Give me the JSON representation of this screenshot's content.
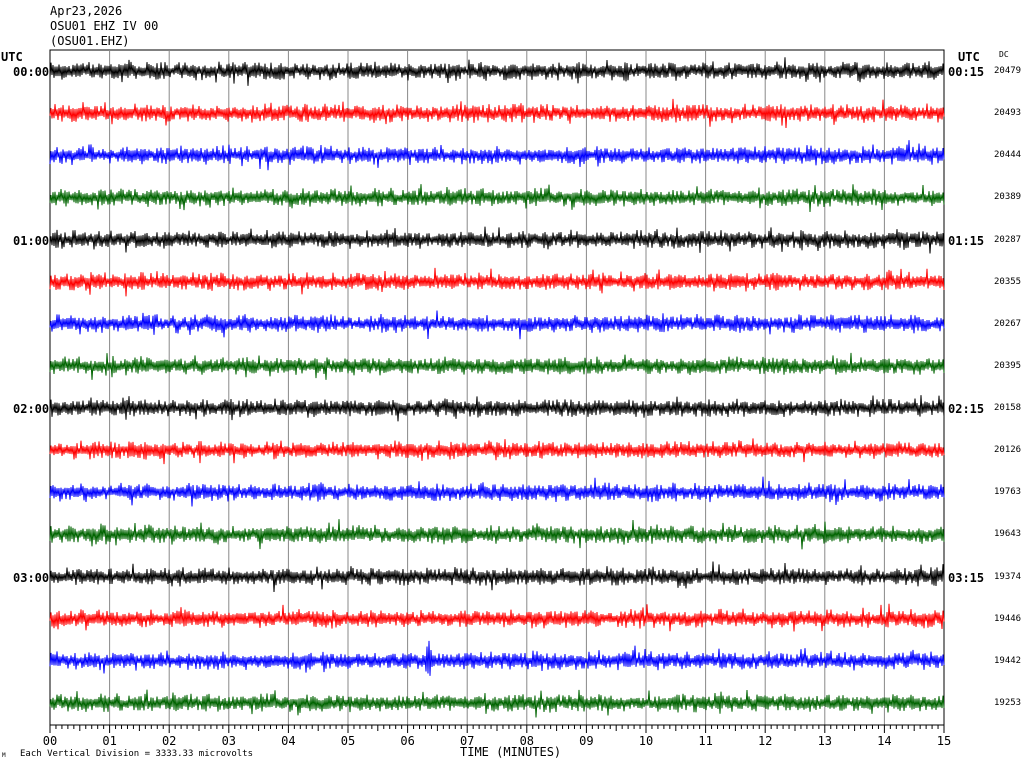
{
  "header": {
    "date": "Apr23,2026",
    "station": "OSU01 EHZ IV 00",
    "channel": "(OSU01.EHZ)"
  },
  "left_utc_label": "UTC",
  "right_utc_label": "UTC",
  "dc_label": "DC",
  "x_axis": {
    "label": "TIME (MINUTES)",
    "ticks": [
      "00",
      "01",
      "02",
      "03",
      "04",
      "05",
      "06",
      "07",
      "08",
      "09",
      "10",
      "11",
      "12",
      "13",
      "14",
      "15"
    ]
  },
  "footer": "Each Vertical Division = 3333.33 microvolts",
  "corner_mark": "M",
  "chart_data": {
    "type": "line",
    "title": "Apr23,2026 OSU01 EHZ IV 00 (OSU01.EHZ)",
    "xlabel": "TIME (MINUTES)",
    "ylabel": "",
    "xlim": [
      0,
      15
    ],
    "grid": true,
    "trace_colors": [
      "#000000",
      "#ff0000",
      "#0000ff",
      "#006400"
    ],
    "rows": [
      {
        "left_time": "00:00",
        "right_time": "00:15",
        "dc": "20479",
        "color": "#000000"
      },
      {
        "left_time": "",
        "right_time": "",
        "dc": "20493",
        "color": "#ff0000"
      },
      {
        "left_time": "",
        "right_time": "",
        "dc": "20444",
        "color": "#0000ff"
      },
      {
        "left_time": "",
        "right_time": "",
        "dc": "20389",
        "color": "#006400"
      },
      {
        "left_time": "01:00",
        "right_time": "01:15",
        "dc": "20287",
        "color": "#000000"
      },
      {
        "left_time": "",
        "right_time": "",
        "dc": "20355",
        "color": "#ff0000"
      },
      {
        "left_time": "",
        "right_time": "",
        "dc": "20267",
        "color": "#0000ff"
      },
      {
        "left_time": "",
        "right_time": "",
        "dc": "20395",
        "color": "#006400"
      },
      {
        "left_time": "02:00",
        "right_time": "02:15",
        "dc": "20158",
        "color": "#000000"
      },
      {
        "left_time": "",
        "right_time": "",
        "dc": "20126",
        "color": "#ff0000"
      },
      {
        "left_time": "",
        "right_time": "",
        "dc": "19763",
        "color": "#0000ff"
      },
      {
        "left_time": "",
        "right_time": "",
        "dc": "19643",
        "color": "#006400"
      },
      {
        "left_time": "03:00",
        "right_time": "03:15",
        "dc": "19374",
        "color": "#000000"
      },
      {
        "left_time": "",
        "right_time": "",
        "dc": "19446",
        "color": "#ff0000"
      },
      {
        "left_time": "",
        "right_time": "",
        "dc": "19442",
        "color": "#0000ff"
      },
      {
        "left_time": "",
        "right_time": "",
        "dc": "19253",
        "color": "#006400"
      }
    ],
    "noise_amplitude_divisions": 0.22,
    "events": [
      {
        "row": 14,
        "minute": 6.35,
        "amplitude": 0.55
      },
      {
        "row": 15,
        "minute": 11.25,
        "amplitude": 0.3
      },
      {
        "row": 12,
        "minute": 14.55,
        "amplitude": 0.3
      },
      {
        "row": 6,
        "minute": 13.7,
        "amplitude": 0.25
      },
      {
        "row": 1,
        "minute": 12.05,
        "amplitude": 0.3
      },
      {
        "row": 13,
        "minute": 7.75,
        "amplitude": 0.25
      }
    ]
  }
}
